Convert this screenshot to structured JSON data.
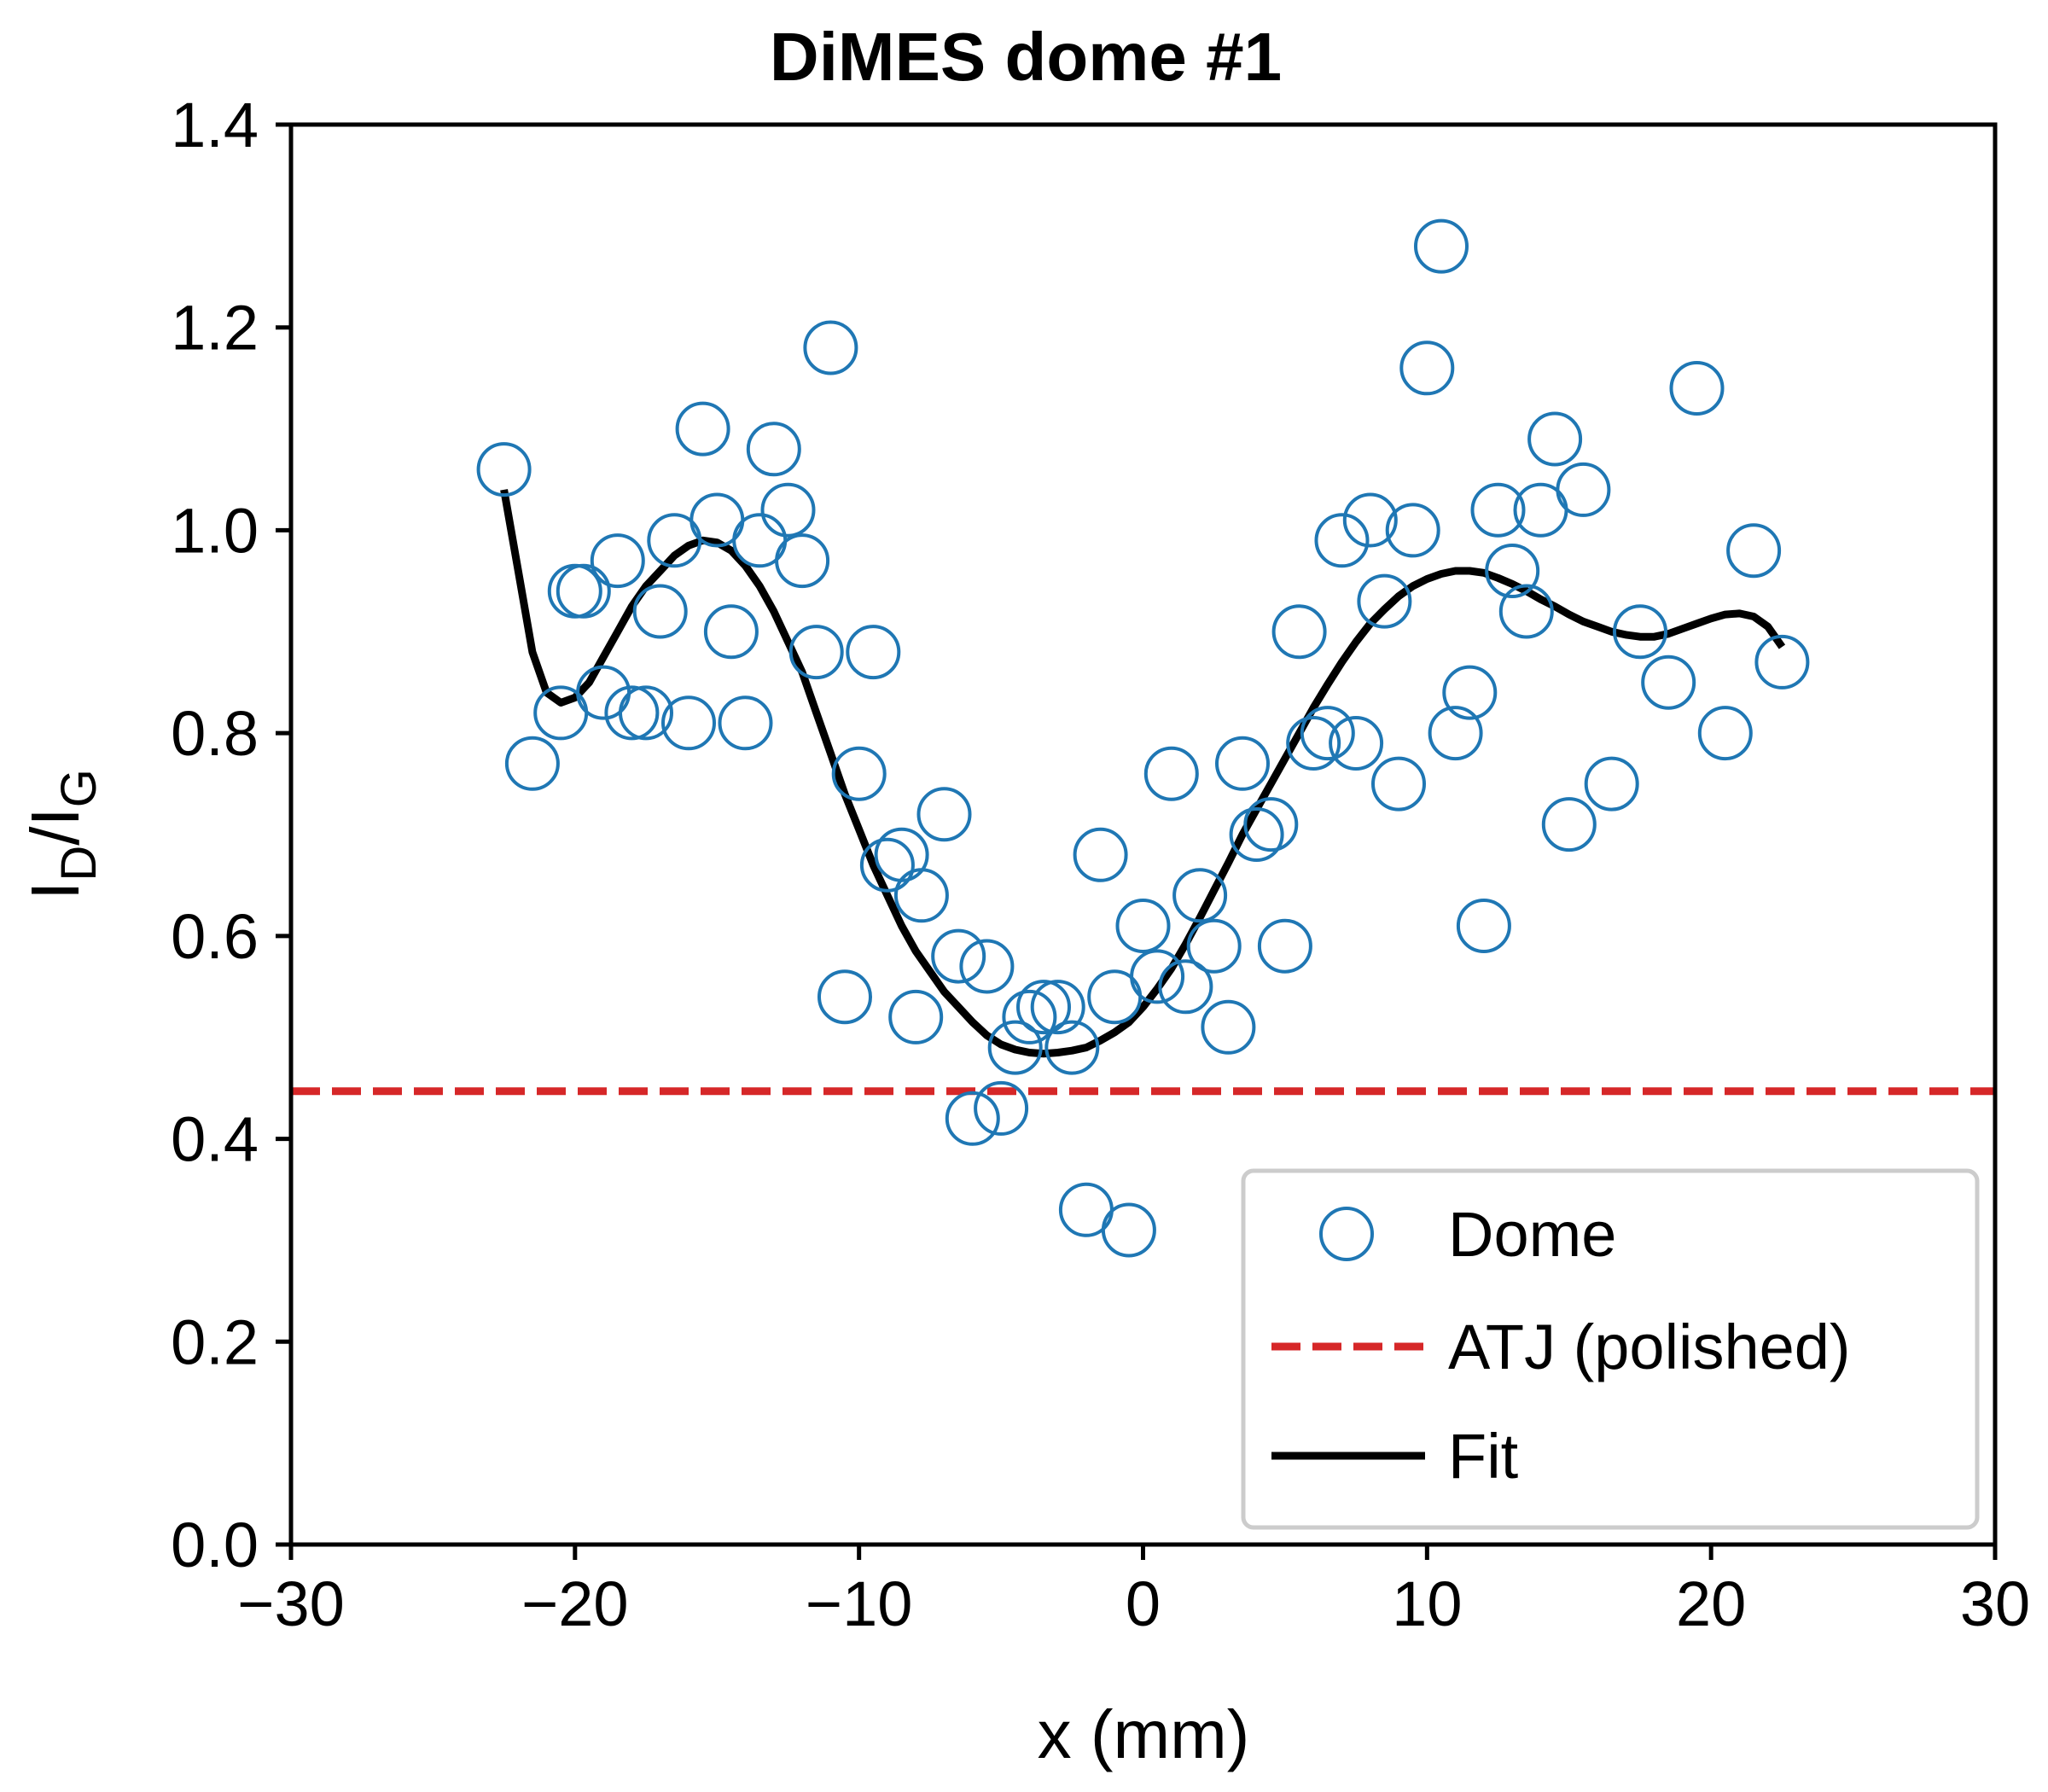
{
  "chart_data": {
    "type": "scatter",
    "title": "DiMES dome #1",
    "xlabel": "x (mm)",
    "ylabel": {
      "main": "I",
      "sub1": "D",
      "slash": "/I",
      "sub2": "G"
    },
    "xlim": [
      -30,
      30
    ],
    "ylim": [
      0.0,
      1.4
    ],
    "grid": false,
    "legend_position": "bottom-right",
    "x_ticks": [
      -30,
      -20,
      -10,
      0,
      10,
      20,
      30
    ],
    "x_tick_labels": [
      "−30",
      "−20",
      "−10",
      "0",
      "10",
      "20",
      "30"
    ],
    "y_ticks": [
      0.0,
      0.2,
      0.4,
      0.6,
      0.8,
      1.0,
      1.2,
      1.4
    ],
    "y_tick_labels": [
      "0.0",
      "0.2",
      "0.4",
      "0.6",
      "0.8",
      "1.0",
      "1.2",
      "1.4"
    ],
    "series": [
      {
        "name": "Dome",
        "kind": "scatter",
        "marker": "open-circle",
        "color": "#1f77b4",
        "points": [
          [
            -22.5,
            1.06
          ],
          [
            -21.5,
            0.77
          ],
          [
            -20.5,
            0.82
          ],
          [
            -20.0,
            0.94
          ],
          [
            -19.7,
            0.94
          ],
          [
            -19.0,
            0.84
          ],
          [
            -18.5,
            0.97
          ],
          [
            -18.0,
            0.82
          ],
          [
            -17.5,
            0.82
          ],
          [
            -17.0,
            0.92
          ],
          [
            -16.5,
            0.99
          ],
          [
            -16.0,
            0.81
          ],
          [
            -15.5,
            1.1
          ],
          [
            -15.0,
            1.01
          ],
          [
            -14.5,
            0.9
          ],
          [
            -14.0,
            0.81
          ],
          [
            -13.5,
            0.99
          ],
          [
            -13.0,
            1.08
          ],
          [
            -12.5,
            1.02
          ],
          [
            -12.0,
            0.97
          ],
          [
            -11.5,
            0.88
          ],
          [
            -11.0,
            1.18
          ],
          [
            -10.5,
            0.54
          ],
          [
            -10.0,
            0.76
          ],
          [
            -9.5,
            0.88
          ],
          [
            -9.0,
            0.67
          ],
          [
            -8.5,
            0.68
          ],
          [
            -8.0,
            0.52
          ],
          [
            -7.8,
            0.64
          ],
          [
            -7.0,
            0.72
          ],
          [
            -6.5,
            0.58
          ],
          [
            -6.0,
            0.42
          ],
          [
            -5.5,
            0.57
          ],
          [
            -5.0,
            0.43
          ],
          [
            -4.5,
            0.49
          ],
          [
            -4.0,
            0.52
          ],
          [
            -3.5,
            0.53
          ],
          [
            -3.0,
            0.53
          ],
          [
            -2.5,
            0.49
          ],
          [
            -2.0,
            0.33
          ],
          [
            -1.5,
            0.68
          ],
          [
            -1.0,
            0.54
          ],
          [
            -0.5,
            0.31
          ],
          [
            0.0,
            0.61
          ],
          [
            0.5,
            0.56
          ],
          [
            1.0,
            0.76
          ],
          [
            1.5,
            0.55
          ],
          [
            2.0,
            0.64
          ],
          [
            2.5,
            0.59
          ],
          [
            3.0,
            0.51
          ],
          [
            3.5,
            0.77
          ],
          [
            4.0,
            0.7
          ],
          [
            4.5,
            0.71
          ],
          [
            5.0,
            0.59
          ],
          [
            5.5,
            0.9
          ],
          [
            6.0,
            0.79
          ],
          [
            6.5,
            0.8
          ],
          [
            7.0,
            0.99
          ],
          [
            7.5,
            0.79
          ],
          [
            8.0,
            1.01
          ],
          [
            8.5,
            0.93
          ],
          [
            9.0,
            0.75
          ],
          [
            9.5,
            1.0
          ],
          [
            10.0,
            1.16
          ],
          [
            10.5,
            1.28
          ],
          [
            11.0,
            0.8
          ],
          [
            11.5,
            0.84
          ],
          [
            12.0,
            0.61
          ],
          [
            12.5,
            1.02
          ],
          [
            13.0,
            0.96
          ],
          [
            13.5,
            0.92
          ],
          [
            14.0,
            1.02
          ],
          [
            14.5,
            1.09
          ],
          [
            15.0,
            0.71
          ],
          [
            15.5,
            1.04
          ],
          [
            16.5,
            0.75
          ],
          [
            17.5,
            0.9
          ],
          [
            18.5,
            0.85
          ],
          [
            19.5,
            1.14
          ],
          [
            20.5,
            0.8
          ],
          [
            21.5,
            0.98
          ],
          [
            22.5,
            0.87
          ]
        ]
      },
      {
        "name": "ATJ (polished)",
        "kind": "hline",
        "line_style": "dashed",
        "color": "#d62728",
        "y": 0.447
      },
      {
        "name": "Fit",
        "kind": "line",
        "line_style": "solid",
        "color": "#000000",
        "points": [
          [
            -22.5,
            1.04
          ],
          [
            -22.0,
            0.96
          ],
          [
            -21.5,
            0.88
          ],
          [
            -21.0,
            0.84
          ],
          [
            -20.5,
            0.83
          ],
          [
            -20.0,
            0.835
          ],
          [
            -19.5,
            0.85
          ],
          [
            -19.0,
            0.875
          ],
          [
            -18.5,
            0.9
          ],
          [
            -18.0,
            0.925
          ],
          [
            -17.5,
            0.945
          ],
          [
            -17.0,
            0.96
          ],
          [
            -16.5,
            0.975
          ],
          [
            -16.0,
            0.985
          ],
          [
            -15.5,
            0.99
          ],
          [
            -15.0,
            0.988
          ],
          [
            -14.5,
            0.98
          ],
          [
            -14.0,
            0.965
          ],
          [
            -13.5,
            0.945
          ],
          [
            -13.0,
            0.92
          ],
          [
            -12.5,
            0.89
          ],
          [
            -12.0,
            0.86
          ],
          [
            -11.5,
            0.82
          ],
          [
            -11.0,
            0.78
          ],
          [
            -10.5,
            0.74
          ],
          [
            -10.0,
            0.705
          ],
          [
            -9.5,
            0.67
          ],
          [
            -9.0,
            0.64
          ],
          [
            -8.5,
            0.61
          ],
          [
            -8.0,
            0.585
          ],
          [
            -7.5,
            0.565
          ],
          [
            -7.0,
            0.545
          ],
          [
            -6.5,
            0.53
          ],
          [
            -6.0,
            0.515
          ],
          [
            -5.5,
            0.502
          ],
          [
            -5.0,
            0.493
          ],
          [
            -4.5,
            0.488
          ],
          [
            -4.0,
            0.485
          ],
          [
            -3.5,
            0.484
          ],
          [
            -3.0,
            0.485
          ],
          [
            -2.5,
            0.487
          ],
          [
            -2.0,
            0.49
          ],
          [
            -1.5,
            0.497
          ],
          [
            -1.0,
            0.505
          ],
          [
            -0.5,
            0.515
          ],
          [
            0.0,
            0.53
          ],
          [
            0.5,
            0.548
          ],
          [
            1.0,
            0.568
          ],
          [
            1.5,
            0.592
          ],
          [
            2.0,
            0.618
          ],
          [
            2.5,
            0.645
          ],
          [
            3.0,
            0.672
          ],
          [
            3.5,
            0.7
          ],
          [
            4.0,
            0.725
          ],
          [
            4.5,
            0.75
          ],
          [
            5.0,
            0.775
          ],
          [
            5.5,
            0.8
          ],
          [
            6.0,
            0.825
          ],
          [
            6.5,
            0.848
          ],
          [
            7.0,
            0.87
          ],
          [
            7.5,
            0.89
          ],
          [
            8.0,
            0.908
          ],
          [
            8.5,
            0.922
          ],
          [
            9.0,
            0.935
          ],
          [
            9.5,
            0.945
          ],
          [
            10.0,
            0.952
          ],
          [
            10.5,
            0.957
          ],
          [
            11.0,
            0.96
          ],
          [
            11.5,
            0.96
          ],
          [
            12.0,
            0.958
          ],
          [
            12.5,
            0.953
          ],
          [
            13.0,
            0.947
          ],
          [
            13.5,
            0.94
          ],
          [
            14.0,
            0.932
          ],
          [
            14.5,
            0.925
          ],
          [
            15.0,
            0.917
          ],
          [
            15.5,
            0.91
          ],
          [
            16.0,
            0.905
          ],
          [
            16.5,
            0.9
          ],
          [
            17.0,
            0.897
          ],
          [
            17.5,
            0.895
          ],
          [
            18.0,
            0.895
          ],
          [
            18.5,
            0.898
          ],
          [
            19.0,
            0.903
          ],
          [
            19.5,
            0.908
          ],
          [
            20.0,
            0.913
          ],
          [
            20.5,
            0.917
          ],
          [
            21.0,
            0.918
          ],
          [
            21.5,
            0.915
          ],
          [
            22.0,
            0.905
          ],
          [
            22.5,
            0.885
          ]
        ]
      }
    ]
  }
}
